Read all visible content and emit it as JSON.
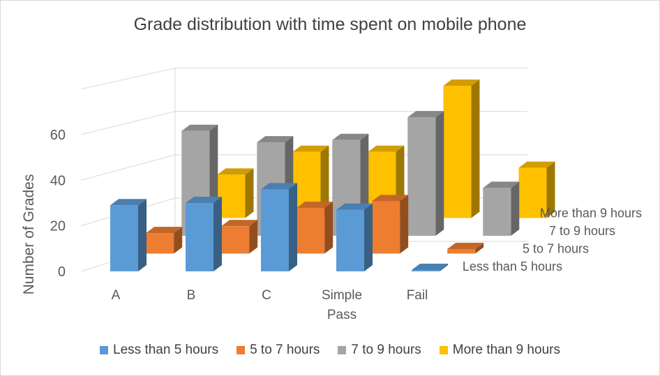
{
  "chart_data": {
    "type": "bar",
    "title": "Grade distribution with time spent on mobile phone",
    "ylabel": "Number of Grades",
    "xlabel": "",
    "categories": [
      "A",
      "B",
      "C",
      "Simple Pass",
      "Fail"
    ],
    "ylim": [
      0,
      60
    ],
    "yticks": [
      0,
      20,
      40,
      60
    ],
    "grid": true,
    "legend_position": "bottom",
    "series": [
      {
        "name": "Less than 5 hours",
        "color": "#5B9BD5",
        "values": [
          29,
          30,
          36,
          27,
          0
        ]
      },
      {
        "name": "5 to 7 hours",
        "color": "#ED7D31",
        "values": [
          9,
          12,
          20,
          23,
          2
        ]
      },
      {
        "name": "7 to 9 hours",
        "color": "#A5A5A5",
        "values": [
          46,
          41,
          42,
          52,
          21
        ]
      },
      {
        "name": "More than 9 hours",
        "color": "#FFC000",
        "values": [
          19,
          29,
          29,
          58,
          22
        ]
      }
    ]
  }
}
